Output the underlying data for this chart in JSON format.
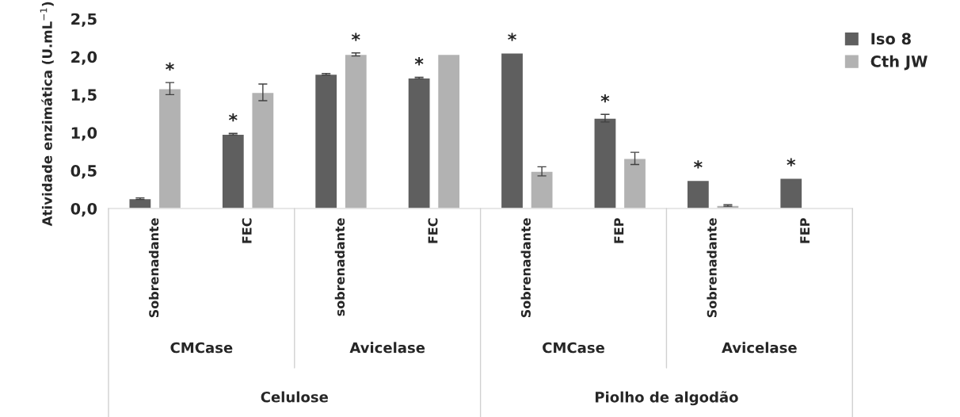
{
  "chart_data": {
    "type": "bar",
    "ylabel": "Atividade enzimática (U.mL$^{−1}$)",
    "categories": [
      "Sobrenadante",
      "FEC",
      "sobrenadante",
      "FEC",
      "Sobrenadante",
      "FEP",
      "Sobrenadante",
      "FEP"
    ],
    "series": [
      {
        "name": "Iso 8",
        "color": "#5f5f5f",
        "values": [
          0.13,
          0.98,
          1.77,
          1.72,
          2.05,
          1.19,
          0.37,
          0.4
        ],
        "errors": [
          0.01,
          0.01,
          0.01,
          0.01,
          null,
          0.05,
          null,
          null
        ],
        "value_labels": [
          null,
          "*",
          null,
          "*",
          "*",
          "*",
          "*",
          "*"
        ]
      },
      {
        "name": "Cth JW",
        "color": "#b2b2b2",
        "values": [
          1.58,
          1.53,
          2.03,
          2.03,
          0.49,
          0.66,
          0.04,
          null
        ],
        "errors": [
          0.08,
          0.11,
          0.02,
          null,
          0.06,
          0.08,
          0.01,
          null
        ],
        "value_labels": [
          "*",
          null,
          "*",
          null,
          null,
          null,
          null,
          null
        ]
      }
    ],
    "annotations": [
      "CMCase",
      "Avicelase",
      "CMCase",
      "Avicelase",
      "Celulose",
      "Piolho de algodão"
    ],
    "ylim": [
      0,
      2.5
    ],
    "yticks": [
      {
        "value": 0,
        "label": "0,0"
      },
      {
        "value": 0.5,
        "label": "0,5"
      },
      {
        "value": 1,
        "label": "1,0"
      },
      {
        "value": 1.5,
        "label": "1,5"
      },
      {
        "value": 2,
        "label": "2,0"
      },
      {
        "value": 2.5,
        "label": "2,5"
      }
    ],
    "grid": false,
    "legend": "top right"
  }
}
